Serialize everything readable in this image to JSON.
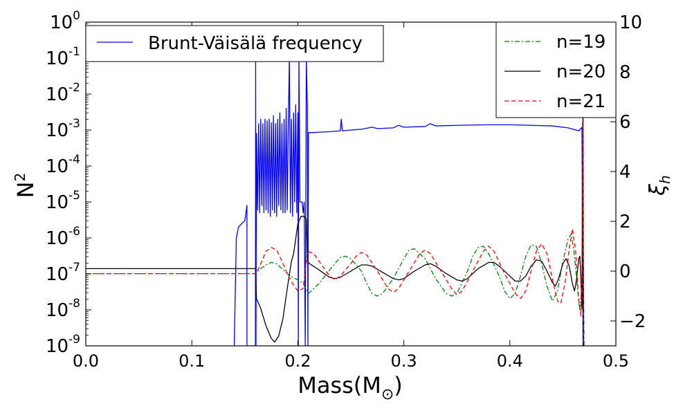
{
  "chart_data": {
    "type": "line",
    "xlabel": "Mass(M",
    "xlabel_sub": "⊙",
    "xlabel_close": ")",
    "ylabel_left": "N",
    "ylabel_left_sup": "2",
    "ylabel_right": "ξ",
    "ylabel_right_sub": "h",
    "xlim": [
      0.0,
      0.5
    ],
    "x_ticks": [
      0.0,
      0.1,
      0.2,
      0.3,
      0.4,
      0.5
    ],
    "x_tick_labels": [
      "0.0",
      "0.1",
      "0.2",
      "0.3",
      "0.4",
      "0.5"
    ],
    "y_left_scale": "log",
    "y_left_lim": [
      1e-09,
      1
    ],
    "y_left_ticks": [
      {
        "base": "10",
        "exp": "0",
        "value": 1
      },
      {
        "base": "10",
        "exp": "-1",
        "value": 0.1
      },
      {
        "base": "10",
        "exp": "-2",
        "value": 0.01
      },
      {
        "base": "10",
        "exp": "-3",
        "value": 0.001
      },
      {
        "base": "10",
        "exp": "-4",
        "value": 0.0001
      },
      {
        "base": "10",
        "exp": "-5",
        "value": 1e-05
      },
      {
        "base": "10",
        "exp": "-6",
        "value": 1e-06
      },
      {
        "base": "10",
        "exp": "-7",
        "value": 1e-07
      },
      {
        "base": "10",
        "exp": "-8",
        "value": 1e-08
      },
      {
        "base": "10",
        "exp": "-9",
        "value": 1e-09
      }
    ],
    "y_right_lim": [
      -3,
      10
    ],
    "y_right_ticks": [
      10,
      8,
      6,
      4,
      2,
      0,
      -2
    ],
    "y_right_tick_labels": [
      "10",
      "8",
      "6",
      "4",
      "2",
      "0",
      "−2"
    ],
    "legend_left": {
      "placement": "top-left",
      "entries": [
        {
          "label": "Brunt-Väisälä frequency",
          "color": "#0000ff",
          "dash": "solid"
        }
      ]
    },
    "legend_right": {
      "placement": "top-right",
      "entries": [
        {
          "label": "n=19",
          "color": "#008000",
          "dash": "dashdot"
        },
        {
          "label": "n=20",
          "color": "#000000",
          "dash": "solid"
        },
        {
          "label": "n=21",
          "color": "#ff0000",
          "dash": "dashed"
        }
      ]
    },
    "series": [
      {
        "name": "Brunt-Väisälä frequency",
        "axis": "left",
        "color": "#0000ff",
        "points": [
          [
            0.14,
            1e-09
          ],
          [
            0.142,
            1e-06
          ],
          [
            0.144,
            2e-06
          ],
          [
            0.147,
            2.5e-06
          ],
          [
            0.15,
            3e-06
          ],
          [
            0.152,
            8e-06
          ],
          [
            0.152,
            1e-09
          ],
          [
            0.153,
            1e-09
          ],
          [
            0.155,
            1e-09
          ],
          [
            0.157,
            1e-09
          ],
          [
            0.159,
            1e-09
          ],
          [
            0.16,
            1e-09
          ],
          [
            0.1602,
            0.1
          ],
          [
            0.1605,
            1e-09
          ],
          [
            0.161,
            0.0008
          ],
          [
            0.162,
            6e-06
          ],
          [
            0.163,
            0.0015
          ],
          [
            0.164,
            5e-06
          ],
          [
            0.165,
            0.002
          ],
          [
            0.166,
            8e-06
          ],
          [
            0.167,
            0.0015
          ],
          [
            0.168,
            5e-06
          ],
          [
            0.169,
            0.002
          ],
          [
            0.17,
            6e-06
          ],
          [
            0.171,
            0.0018
          ],
          [
            0.172,
            5e-06
          ],
          [
            0.173,
            0.002
          ],
          [
            0.174,
            4e-06
          ],
          [
            0.175,
            0.0016
          ],
          [
            0.176,
            6e-06
          ],
          [
            0.177,
            0.0025
          ],
          [
            0.178,
            5e-06
          ],
          [
            0.179,
            0.0015
          ],
          [
            0.18,
            4e-06
          ],
          [
            0.181,
            0.002
          ],
          [
            0.182,
            8e-06
          ],
          [
            0.183,
            0.003
          ],
          [
            0.184,
            6e-06
          ],
          [
            0.185,
            0.0015
          ],
          [
            0.186,
            5e-06
          ],
          [
            0.187,
            0.002
          ],
          [
            0.188,
            5e-06
          ],
          [
            0.189,
            0.004
          ],
          [
            0.19,
            6e-06
          ],
          [
            0.191,
            0.0015
          ],
          [
            0.192,
            0.1
          ],
          [
            0.193,
            5e-06
          ],
          [
            0.194,
            0.002
          ],
          [
            0.195,
            4e-06
          ],
          [
            0.196,
            0.003
          ],
          [
            0.197,
            1e-05
          ],
          [
            0.198,
            0.005
          ],
          [
            0.199,
            5e-06
          ],
          [
            0.2,
            0.003
          ],
          [
            0.2005,
            1e-09
          ],
          [
            0.201,
            0.1
          ],
          [
            0.202,
            1e-05
          ],
          [
            0.204,
            1e-05
          ],
          [
            0.205,
            5e-06
          ],
          [
            0.206,
            1e-05
          ],
          [
            0.207,
            1e-09
          ],
          [
            0.208,
            0.1
          ],
          [
            0.209,
            0.004
          ],
          [
            0.2095,
            1e-09
          ],
          [
            0.21,
            0.00085
          ],
          [
            0.215,
            0.00085
          ],
          [
            0.22,
            0.00087
          ],
          [
            0.23,
            0.0009
          ],
          [
            0.24,
            0.00095
          ],
          [
            0.241,
            0.002
          ],
          [
            0.242,
            0.00095
          ],
          [
            0.25,
            0.001
          ],
          [
            0.26,
            0.00105
          ],
          [
            0.27,
            0.0012
          ],
          [
            0.275,
            0.0011
          ],
          [
            0.29,
            0.00115
          ],
          [
            0.295,
            0.00135
          ],
          [
            0.3,
            0.0012
          ],
          [
            0.32,
            0.00125
          ],
          [
            0.325,
            0.0015
          ],
          [
            0.33,
            0.0013
          ],
          [
            0.35,
            0.00135
          ],
          [
            0.38,
            0.0014
          ],
          [
            0.4,
            0.0014
          ],
          [
            0.42,
            0.00135
          ],
          [
            0.44,
            0.0013
          ],
          [
            0.455,
            0.00115
          ],
          [
            0.465,
            0.00095
          ],
          [
            0.468,
            0.0012
          ],
          [
            0.469,
            1e-09
          ],
          [
            0.47,
            1e-09
          ]
        ]
      },
      {
        "name": "n=19",
        "axis": "right",
        "color": "#008000",
        "points": [
          [
            0.0,
            -0.1
          ],
          [
            0.16,
            -0.1
          ],
          [
            0.165,
            0.1
          ],
          [
            0.17,
            0.25
          ],
          [
            0.175,
            0.35
          ],
          [
            0.18,
            0.3
          ],
          [
            0.185,
            0.1
          ],
          [
            0.19,
            -0.1
          ],
          [
            0.195,
            -0.25
          ],
          [
            0.2,
            -0.35
          ],
          [
            0.205,
            -0.5
          ],
          [
            0.21,
            -0.9
          ],
          [
            0.22,
            -0.5
          ],
          [
            0.23,
            0.05
          ],
          [
            0.24,
            0.55
          ],
          [
            0.245,
            0.6
          ],
          [
            0.25,
            0.5
          ],
          [
            0.26,
            0.0
          ],
          [
            0.265,
            -0.5
          ],
          [
            0.27,
            -0.9
          ],
          [
            0.275,
            -1.0
          ],
          [
            0.28,
            -0.9
          ],
          [
            0.29,
            -0.3
          ],
          [
            0.3,
            0.5
          ],
          [
            0.305,
            0.85
          ],
          [
            0.31,
            0.9
          ],
          [
            0.32,
            0.5
          ],
          [
            0.33,
            -0.3
          ],
          [
            0.34,
            -0.9
          ],
          [
            0.345,
            -1.0
          ],
          [
            0.35,
            -0.9
          ],
          [
            0.36,
            0.0
          ],
          [
            0.365,
            0.6
          ],
          [
            0.37,
            0.95
          ],
          [
            0.375,
            1.0
          ],
          [
            0.38,
            0.7
          ],
          [
            0.39,
            -0.2
          ],
          [
            0.395,
            -0.8
          ],
          [
            0.4,
            -1.1
          ],
          [
            0.405,
            -0.9
          ],
          [
            0.41,
            -0.2
          ],
          [
            0.415,
            0.6
          ],
          [
            0.42,
            1.05
          ],
          [
            0.425,
            1.0
          ],
          [
            0.43,
            0.3
          ],
          [
            0.435,
            -0.6
          ],
          [
            0.44,
            -1.2
          ],
          [
            0.445,
            -0.8
          ],
          [
            0.45,
            0.4
          ],
          [
            0.455,
            1.3
          ],
          [
            0.458,
            1.5
          ],
          [
            0.461,
            0.6
          ],
          [
            0.464,
            -0.8
          ],
          [
            0.466,
            -1.6
          ],
          [
            0.468,
            -0.5
          ],
          [
            0.469,
            2.0
          ],
          [
            0.47,
            -3.0
          ]
        ]
      },
      {
        "name": "n=20",
        "axis": "right",
        "color": "#000000",
        "points": [
          [
            0.0,
            0.1
          ],
          [
            0.16,
            0.1
          ],
          [
            0.161,
            -1.1
          ],
          [
            0.165,
            -1.5
          ],
          [
            0.17,
            -2.2
          ],
          [
            0.175,
            -2.7
          ],
          [
            0.178,
            -2.85
          ],
          [
            0.182,
            -2.6
          ],
          [
            0.186,
            -1.9
          ],
          [
            0.19,
            -0.7
          ],
          [
            0.194,
            0.4
          ],
          [
            0.196,
            0.7
          ],
          [
            0.198,
            1.3
          ],
          [
            0.2,
            1.9
          ],
          [
            0.203,
            2.2
          ],
          [
            0.206,
            2.2
          ],
          [
            0.208,
            2.1
          ],
          [
            0.209,
            0.4
          ],
          [
            0.211,
            0.3
          ],
          [
            0.22,
            0.05
          ],
          [
            0.23,
            -0.25
          ],
          [
            0.235,
            -0.3
          ],
          [
            0.24,
            -0.25
          ],
          [
            0.25,
            0.0
          ],
          [
            0.26,
            0.25
          ],
          [
            0.265,
            0.25
          ],
          [
            0.27,
            0.2
          ],
          [
            0.28,
            -0.05
          ],
          [
            0.29,
            -0.3
          ],
          [
            0.295,
            -0.35
          ],
          [
            0.3,
            -0.3
          ],
          [
            0.31,
            0.0
          ],
          [
            0.32,
            0.25
          ],
          [
            0.325,
            0.3
          ],
          [
            0.33,
            0.2
          ],
          [
            0.34,
            -0.1
          ],
          [
            0.35,
            -0.35
          ],
          [
            0.355,
            -0.4
          ],
          [
            0.36,
            -0.3
          ],
          [
            0.37,
            0.1
          ],
          [
            0.38,
            0.35
          ],
          [
            0.385,
            0.35
          ],
          [
            0.39,
            0.2
          ],
          [
            0.4,
            -0.2
          ],
          [
            0.405,
            -0.4
          ],
          [
            0.41,
            -0.4
          ],
          [
            0.415,
            -0.2
          ],
          [
            0.42,
            0.2
          ],
          [
            0.425,
            0.45
          ],
          [
            0.43,
            0.4
          ],
          [
            0.435,
            0.0
          ],
          [
            0.44,
            -0.45
          ],
          [
            0.443,
            -0.6
          ],
          [
            0.446,
            -0.3
          ],
          [
            0.45,
            0.3
          ],
          [
            0.453,
            0.5
          ],
          [
            0.456,
            0.2
          ],
          [
            0.459,
            -0.5
          ],
          [
            0.461,
            -0.8
          ],
          [
            0.463,
            -0.3
          ],
          [
            0.465,
            0.5
          ],
          [
            0.466,
            0.6
          ],
          [
            0.467,
            -0.3
          ],
          [
            0.468,
            -1.5
          ],
          [
            0.4685,
            4.0
          ],
          [
            0.469,
            6.5
          ],
          [
            0.4695,
            -3.0
          ]
        ]
      },
      {
        "name": "n=21",
        "axis": "right",
        "color": "#ff0000",
        "points": [
          [
            0.0,
            -0.1
          ],
          [
            0.16,
            -0.1
          ],
          [
            0.163,
            0.1
          ],
          [
            0.167,
            0.5
          ],
          [
            0.17,
            0.8
          ],
          [
            0.175,
            0.95
          ],
          [
            0.18,
            0.85
          ],
          [
            0.185,
            0.4
          ],
          [
            0.19,
            -0.1
          ],
          [
            0.195,
            -0.5
          ],
          [
            0.2,
            -0.8
          ],
          [
            0.205,
            -0.7
          ],
          [
            0.209,
            0.8
          ],
          [
            0.215,
            0.7
          ],
          [
            0.22,
            0.4
          ],
          [
            0.23,
            -0.2
          ],
          [
            0.235,
            -0.35
          ],
          [
            0.24,
            -0.2
          ],
          [
            0.25,
            0.3
          ],
          [
            0.255,
            0.6
          ],
          [
            0.26,
            0.75
          ],
          [
            0.265,
            0.65
          ],
          [
            0.275,
            0.0
          ],
          [
            0.285,
            -0.7
          ],
          [
            0.29,
            -0.85
          ],
          [
            0.295,
            -0.7
          ],
          [
            0.305,
            0.0
          ],
          [
            0.315,
            0.7
          ],
          [
            0.32,
            0.85
          ],
          [
            0.325,
            0.7
          ],
          [
            0.335,
            0.0
          ],
          [
            0.345,
            -0.7
          ],
          [
            0.35,
            -0.95
          ],
          [
            0.355,
            -0.8
          ],
          [
            0.365,
            0.0
          ],
          [
            0.375,
            0.8
          ],
          [
            0.38,
            1.0
          ],
          [
            0.385,
            0.8
          ],
          [
            0.395,
            -0.1
          ],
          [
            0.405,
            -0.9
          ],
          [
            0.41,
            -1.1
          ],
          [
            0.415,
            -0.8
          ],
          [
            0.42,
            0.0
          ],
          [
            0.425,
            0.8
          ],
          [
            0.43,
            1.1
          ],
          [
            0.435,
            0.7
          ],
          [
            0.44,
            -0.3
          ],
          [
            0.445,
            -1.2
          ],
          [
            0.448,
            -1.3
          ],
          [
            0.452,
            -0.5
          ],
          [
            0.456,
            0.9
          ],
          [
            0.459,
            1.7
          ],
          [
            0.462,
            0.8
          ],
          [
            0.465,
            -1.2
          ],
          [
            0.467,
            -1.8
          ],
          [
            0.468,
            0.0
          ],
          [
            0.4685,
            6.0
          ],
          [
            0.469,
            5.0
          ],
          [
            0.4695,
            -3.0
          ]
        ]
      }
    ]
  }
}
